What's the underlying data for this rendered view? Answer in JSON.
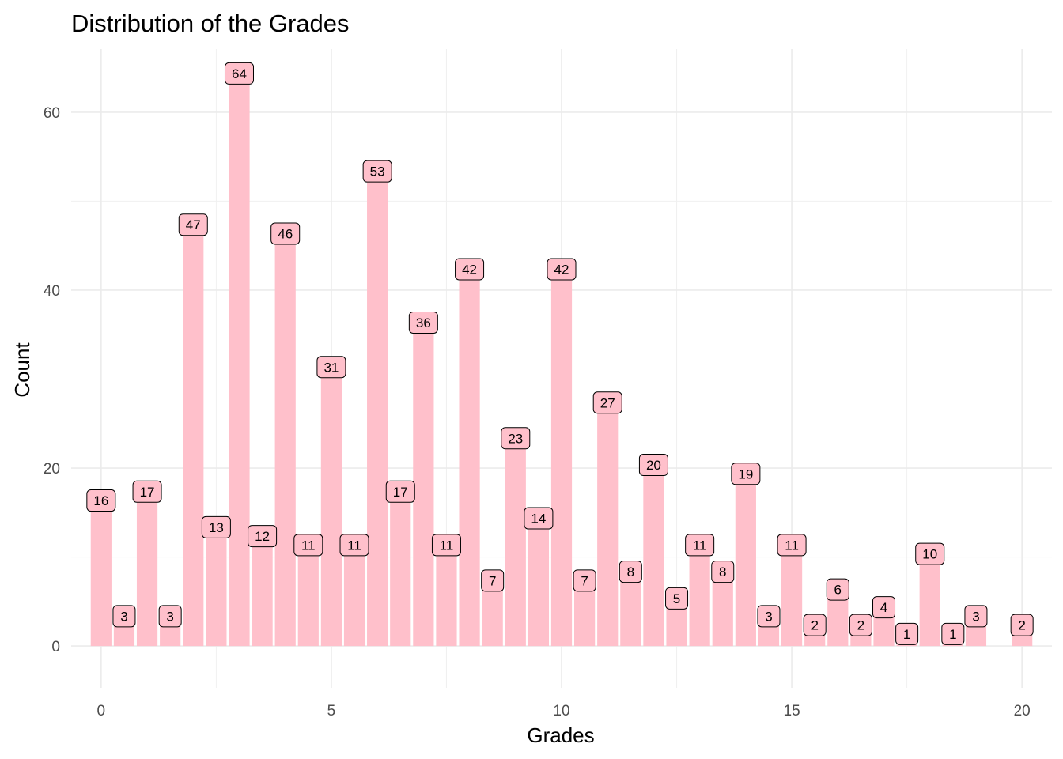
{
  "chart_data": {
    "type": "bar",
    "title": "Distribution of the Grades",
    "xlabel": "Grades",
    "ylabel": "Count",
    "xlim": [
      -0.65,
      20.65
    ],
    "ylim": [
      -4.7,
      67.1
    ],
    "xticks": [
      0,
      5,
      10,
      15,
      20
    ],
    "yticks": [
      0,
      20,
      40,
      60
    ],
    "grid": true,
    "bar_width": 0.45,
    "bar_color": "#FFC0CB",
    "label_fill": "#FFC0CB",
    "x": [
      0,
      0.5,
      1,
      1.5,
      2,
      2.5,
      3,
      3.5,
      4,
      4.5,
      5,
      5.5,
      6,
      6.5,
      7,
      7.5,
      8,
      8.5,
      9,
      9.5,
      10,
      10.5,
      11,
      11.5,
      12,
      12.5,
      13,
      13.5,
      14,
      14.5,
      15,
      15.5,
      16,
      16.5,
      17,
      17.5,
      18,
      18.5,
      19,
      20
    ],
    "values": [
      16,
      3,
      17,
      3,
      47,
      13,
      64,
      12,
      46,
      11,
      31,
      11,
      53,
      17,
      36,
      11,
      42,
      7,
      23,
      14,
      42,
      7,
      27,
      8,
      20,
      5,
      11,
      8,
      19,
      3,
      11,
      2,
      6,
      2,
      4,
      1,
      10,
      1,
      3,
      2
    ]
  }
}
